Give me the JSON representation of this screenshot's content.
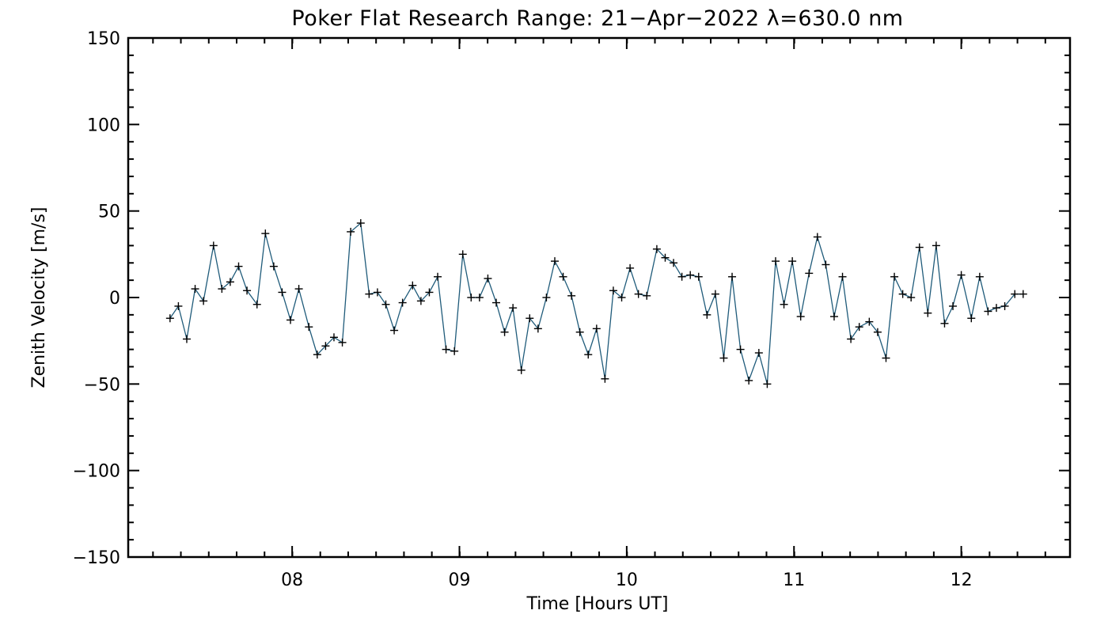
{
  "chart_data": {
    "type": "line",
    "title": "Poker Flat Research Range: 21−Apr−2022 λ=630.0 nm",
    "xlabel": "Time [Hours UT]",
    "ylabel": "Zenith Velocity [m/s]",
    "xlim": [
      7.02,
      12.65
    ],
    "ylim": [
      -150,
      150
    ],
    "grid": false,
    "x_major_ticks": [
      8,
      9,
      10,
      11,
      12
    ],
    "x_tick_labels": [
      "08",
      "09",
      "10",
      "11",
      "12"
    ],
    "x_minor_step": 0.1667,
    "y_major_ticks": [
      150,
      100,
      50,
      0,
      -50,
      -100,
      -150
    ],
    "y_tick_labels": [
      "150",
      "100",
      "50",
      "0",
      "−50",
      "−100",
      "−150"
    ],
    "y_minor_step": 10,
    "series_color": "#1f5b7a",
    "marker_color": "#000000",
    "marker": "plus",
    "series": [
      {
        "name": "Zenith Velocity",
        "x": [
          7.27,
          7.32,
          7.37,
          7.42,
          7.47,
          7.53,
          7.58,
          7.63,
          7.68,
          7.73,
          7.79,
          7.84,
          7.89,
          7.94,
          7.99,
          8.04,
          8.1,
          8.15,
          8.2,
          8.25,
          8.3,
          8.35,
          8.41,
          8.46,
          8.51,
          8.56,
          8.61,
          8.66,
          8.72,
          8.77,
          8.82,
          8.87,
          8.92,
          8.97,
          9.02,
          9.07,
          9.12,
          9.17,
          9.22,
          9.27,
          9.32,
          9.37,
          9.42,
          9.47,
          9.52,
          9.57,
          9.62,
          9.67,
          9.72,
          9.77,
          9.82,
          9.87,
          9.92,
          9.97,
          10.02,
          10.07,
          10.12,
          10.18,
          10.23,
          10.28,
          10.33,
          10.38,
          10.43,
          10.48,
          10.53,
          10.58,
          10.63,
          10.68,
          10.73,
          10.79,
          10.84,
          10.89,
          10.94,
          10.99,
          11.04,
          11.09,
          11.14,
          11.19,
          11.24,
          11.29,
          11.34,
          11.39,
          11.45,
          11.5,
          11.55,
          11.6,
          11.65,
          11.7,
          11.75,
          11.8,
          11.85,
          11.9,
          11.95,
          12.0,
          12.06,
          12.11,
          12.16,
          12.21,
          12.26,
          12.32,
          12.37
        ],
        "y": [
          -12,
          -5,
          -24,
          5,
          -2,
          30,
          5,
          9,
          18,
          4,
          -4,
          37,
          18,
          3,
          -13,
          5,
          -17,
          -33,
          -28,
          -23,
          -26,
          38,
          43,
          2,
          3,
          -4,
          -19,
          -3,
          7,
          -2,
          3,
          12,
          -30,
          -31,
          25,
          0,
          0,
          11,
          -3,
          -20,
          -6,
          -42,
          -12,
          -18,
          0,
          21,
          12,
          1,
          -20,
          -33,
          -18,
          -47,
          4,
          0,
          17,
          2,
          1,
          28,
          23,
          20,
          12,
          13,
          12,
          -10,
          2,
          -35,
          12,
          -30,
          -48,
          -32,
          -50,
          21,
          -4,
          21,
          -11,
          14,
          35,
          19,
          -11,
          12,
          -24,
          -17,
          -14,
          -20,
          -35,
          12,
          2,
          0,
          29,
          -9,
          30,
          -15,
          -5,
          13,
          -12,
          12,
          -8,
          -6,
          -5,
          2,
          2
        ]
      }
    ]
  }
}
